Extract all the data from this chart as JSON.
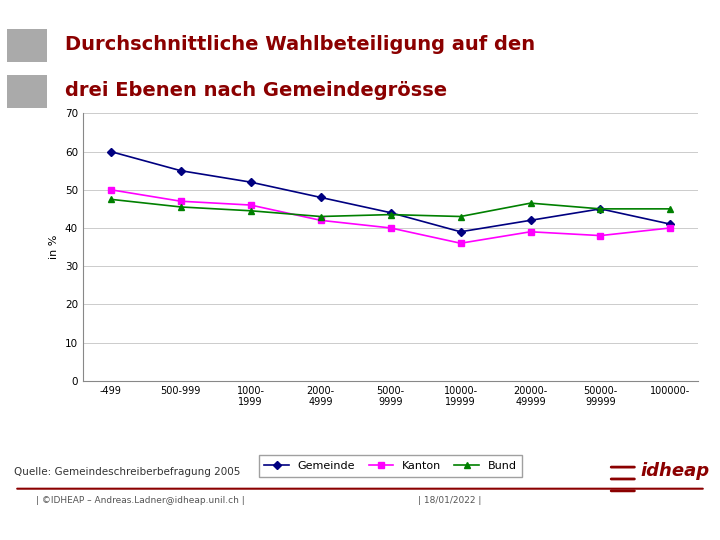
{
  "title_line1": "Durchschnittliche Wahlbeteiligung auf den",
  "title_line2": "drei Ebenen nach Gemeindegrösse",
  "title_color": "#8B0000",
  "title_fontsize": 14,
  "ylabel": "in %",
  "ylabel_fontsize": 8,
  "source_text": "Quelle: Gemeindeschreiberbefragung 2005",
  "footer_left": "| ©IDHEAP – Andreas.Ladner@idheap.unil.ch |",
  "footer_right": "| 18/01/2022 |",
  "categories": [
    "-499",
    "500-999",
    "1000-\n1999",
    "2000-\n4999",
    "5000-\n9999",
    "10000-\n19999",
    "20000-\n49999",
    "50000-\n99999",
    "100000-"
  ],
  "x_positions": [
    0,
    1,
    2,
    3,
    4,
    5,
    6,
    7,
    8
  ],
  "gemeinde": [
    60,
    55,
    52,
    48,
    44,
    39,
    42,
    45,
    41
  ],
  "kanton": [
    50,
    47,
    46,
    42,
    40,
    36,
    39,
    38,
    40
  ],
  "bund": [
    47.5,
    45.5,
    44.5,
    43,
    43.5,
    43,
    46.5,
    45,
    45
  ],
  "gemeinde_color": "#000080",
  "kanton_color": "#FF00FF",
  "bund_color": "#008000",
  "ylim": [
    0,
    70
  ],
  "yticks": [
    0,
    10,
    20,
    30,
    40,
    50,
    60,
    70
  ],
  "background_color": "#ffffff",
  "plot_bg_color": "#ffffff",
  "grid_color": "#cccccc",
  "legend_labels": [
    "Gemeinde",
    "Kanton",
    "Bund"
  ],
  "decoration_color": "#8B0000",
  "gray_color": "#aaaaaa"
}
